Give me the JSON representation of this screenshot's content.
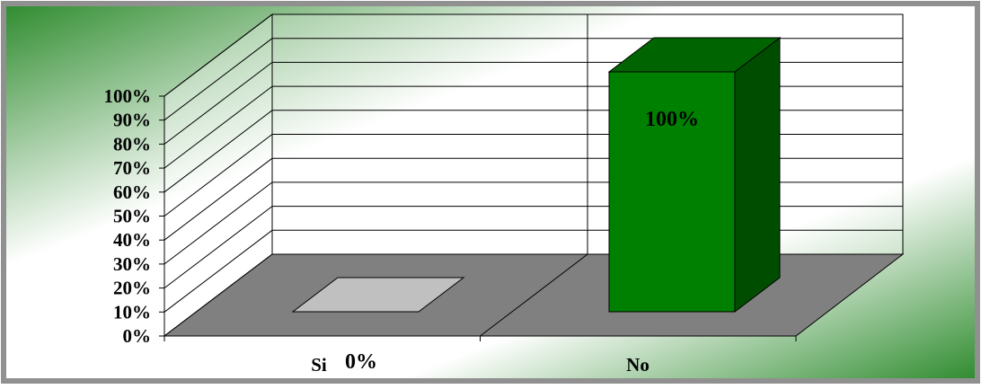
{
  "chart_data": {
    "type": "bar",
    "style": "3d-column",
    "categories": [
      "Si",
      "No"
    ],
    "values": [
      0,
      100
    ],
    "data_labels": [
      "0%",
      "100%"
    ],
    "y_ticks": [
      "0%",
      "10%",
      "20%",
      "30%",
      "40%",
      "50%",
      "60%",
      "70%",
      "80%",
      "90%",
      "100%"
    ],
    "ylim": [
      0,
      100
    ],
    "y_unit": "%",
    "title": "",
    "xlabel": "",
    "ylabel": "",
    "grid": true,
    "legend": "none",
    "colors": {
      "bar_front": "#008000",
      "bar_side": "#004d00",
      "bar_top": "#006400",
      "floor": "#808080",
      "zero_bar": "#c0c0c0",
      "background_dark": "#2e8b2e",
      "background_light": "#ffffff",
      "frame_border": "#909090"
    }
  }
}
